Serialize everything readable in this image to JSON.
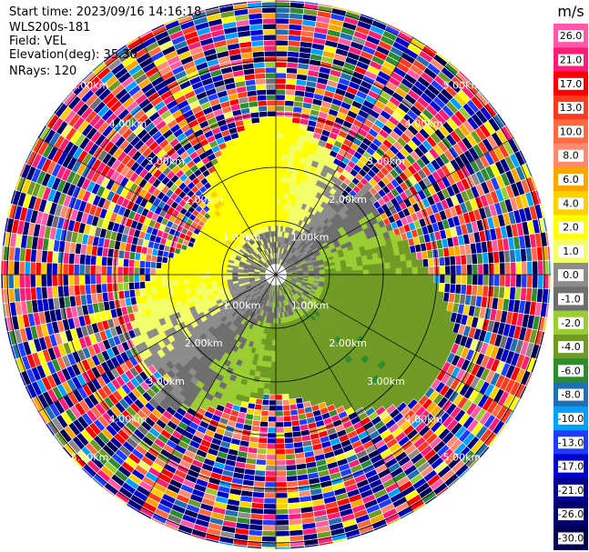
{
  "header": {
    "start_time": "Start time: 2023/09/16 14:16:18",
    "device": "WLS200s-181",
    "field": "Field: VEL",
    "elevation": "Elevation(deg): 35.30",
    "nrays": "NRays: 120"
  },
  "chart_data": {
    "type": "heatmap",
    "projection": "polar-ppi",
    "field": "VEL",
    "units": "m/s",
    "n_rays": 120,
    "range_ring_labels": [
      "1.00km",
      "2.00km",
      "3.00km",
      "4.00km",
      "5.00km"
    ],
    "colorbar": {
      "title": "m/s",
      "ticks": [
        "26.0",
        "21.0",
        "17.0",
        "13.0",
        "10.0",
        "8.0",
        "6.0",
        "4.0",
        "2.0",
        "1.0",
        "0.0",
        "-1.0",
        "-2.0",
        "-4.0",
        "-6.0",
        "-8.0",
        "-10.0",
        "-13.0",
        "-17.0",
        "-21.0",
        "-26.0",
        "-30.0"
      ],
      "colors": [
        "#ff5aa8",
        "#ff1c74",
        "#ff0000",
        "#ff3a1e",
        "#ff6a40",
        "#ff8a70",
        "#ffa500",
        "#ffd000",
        "#ffff00",
        "#f2ff66",
        "#8c8c8c",
        "#6e6e6e",
        "#9acd32",
        "#6f9a24",
        "#2e8b2e",
        "#1f6fb4",
        "#00a0ff",
        "#1e3cff",
        "#0000cd",
        "#000090",
        "#000070",
        "#000050"
      ]
    }
  }
}
